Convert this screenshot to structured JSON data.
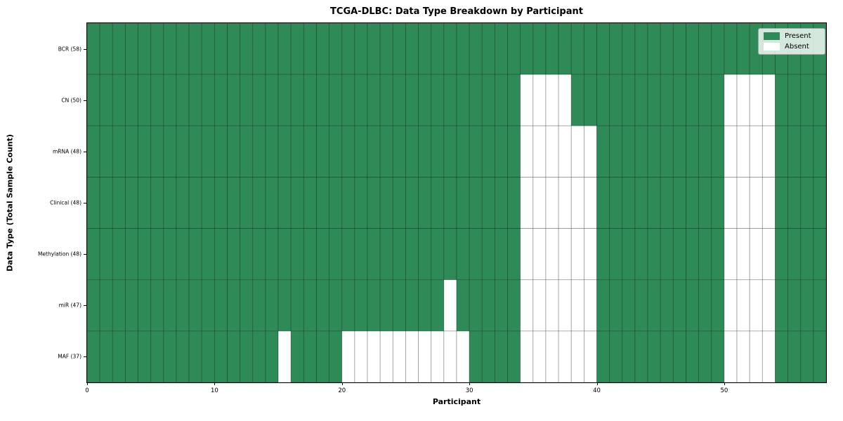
{
  "title": "TCGA-DLBC: Data Type Breakdown by Participant",
  "chart_data": {
    "type": "heatmap",
    "title": "TCGA-DLBC: Data Type Breakdown by Participant",
    "xlabel": "Participant",
    "ylabel": "Data Type (Total Sample Count)",
    "n_participants": 58,
    "xlim": [
      0,
      58
    ],
    "x_ticks": [
      0,
      10,
      20,
      30,
      40,
      50
    ],
    "grid": true,
    "legend_position": "upper right",
    "colors": {
      "present": "#2E8B57",
      "absent": "#ffffff",
      "grid_line": "rgba(0,0,0,0.32)",
      "spine": "#000000"
    },
    "legend": [
      {
        "label": "Present",
        "color": "#2E8B57"
      },
      {
        "label": "Absent",
        "color": "#ffffff"
      }
    ],
    "rows": [
      {
        "label": "BCR (58)",
        "data_type": "BCR",
        "total": 58,
        "absent": []
      },
      {
        "label": "CN (50)",
        "data_type": "CN",
        "total": 50,
        "absent": [
          34,
          35,
          36,
          37,
          50,
          51,
          52,
          53
        ]
      },
      {
        "label": "mRNA (48)",
        "data_type": "mRNA",
        "total": 48,
        "absent": [
          34,
          35,
          36,
          37,
          38,
          39,
          50,
          51,
          52,
          53
        ]
      },
      {
        "label": "Clinical (48)",
        "data_type": "Clinical",
        "total": 48,
        "absent": [
          34,
          35,
          36,
          37,
          38,
          39,
          50,
          51,
          52,
          53
        ]
      },
      {
        "label": "Methylation (48)",
        "data_type": "Methylation",
        "total": 48,
        "absent": [
          34,
          35,
          36,
          37,
          38,
          39,
          50,
          51,
          52,
          53
        ]
      },
      {
        "label": "miR (47)",
        "data_type": "miR",
        "total": 47,
        "absent": [
          28,
          34,
          35,
          36,
          37,
          38,
          39,
          50,
          51,
          52,
          53
        ]
      },
      {
        "label": "MAF (37)",
        "data_type": "MAF",
        "total": 37,
        "absent": [
          15,
          20,
          21,
          22,
          23,
          24,
          25,
          26,
          27,
          28,
          29,
          34,
          35,
          36,
          37,
          38,
          39,
          50,
          51,
          52,
          53
        ]
      }
    ]
  }
}
